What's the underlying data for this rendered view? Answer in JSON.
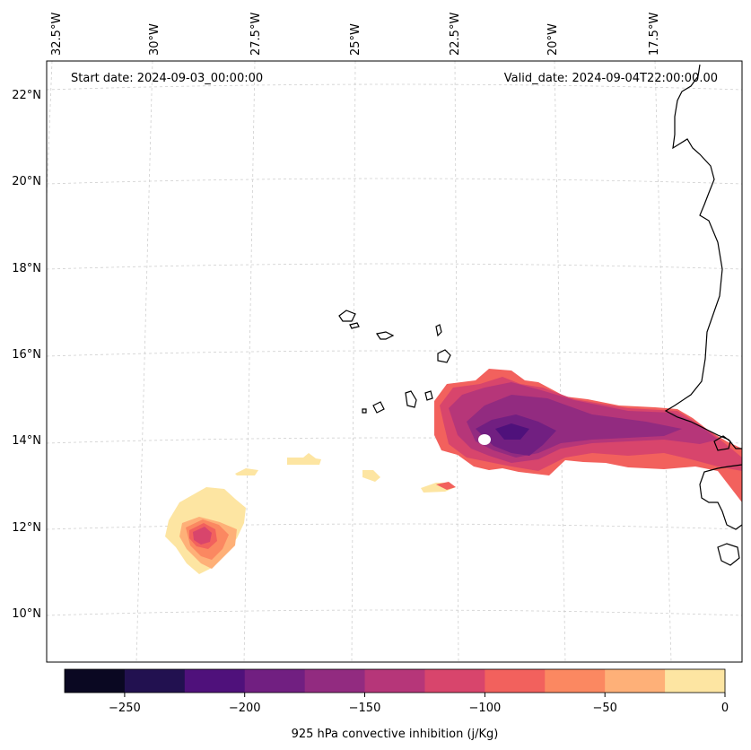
{
  "map": {
    "start_date": "Start date: 2024-09-03_00:00:00",
    "valid_date": "Valid_date: 2024-09-04T22:00:00.00",
    "lon_labels": [
      "32.5°W",
      "30°W",
      "27.5°W",
      "25°W",
      "22.5°W",
      "20°W",
      "17.5°W"
    ],
    "lat_labels": [
      "22°N",
      "20°N",
      "18°N",
      "16°N",
      "14°N",
      "12°N",
      "10°N"
    ]
  },
  "colorbar": {
    "label": "925 hPa convective inhibition (j/Kg)",
    "ticks": [
      "−250",
      "−200",
      "−150",
      "−100",
      "−50",
      "0"
    ],
    "colors": [
      "#0a0822",
      "#221150",
      "#4f117b",
      "#711f81",
      "#922b80",
      "#b63679",
      "#d8456c",
      "#f2615d",
      "#fb8861",
      "#feb078",
      "#fde5a2"
    ]
  }
}
